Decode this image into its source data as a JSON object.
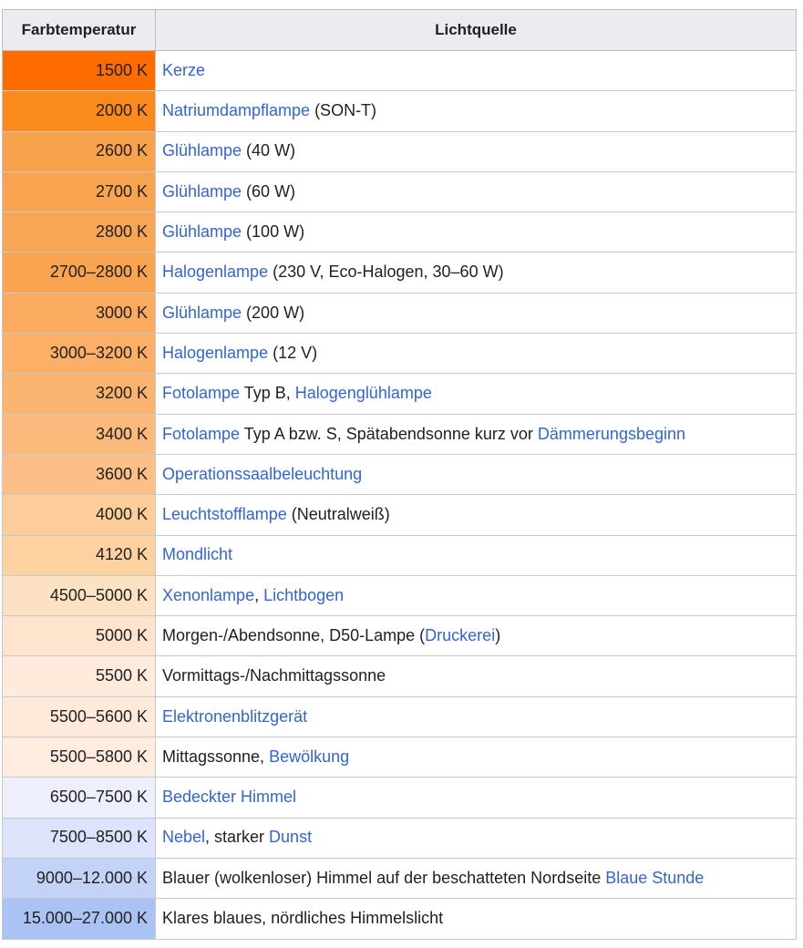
{
  "colors": {
    "link": "#3366cc",
    "body_text": "#202122",
    "header_bg": "#eaecf0",
    "outer_border": "#a2a9b1",
    "inner_border": "#c5c9ce"
  },
  "table": {
    "headers": [
      "Farbtemperatur",
      "Lichtquelle"
    ],
    "rows": [
      {
        "temp": "1500 K",
        "color": "#ff6c00",
        "parts": [
          {
            "text": "Kerze",
            "link": true
          }
        ]
      },
      {
        "temp": "2000 K",
        "color": "#fb8a1c",
        "parts": [
          {
            "text": "Natriumdampflampe",
            "link": true
          },
          {
            "text": " (SON-T)",
            "link": false
          }
        ]
      },
      {
        "temp": "2600 K",
        "color": "#f9a24c",
        "parts": [
          {
            "text": "Glühlampe",
            "link": true
          },
          {
            "text": " (40 W)",
            "link": false
          }
        ]
      },
      {
        "temp": "2700 K",
        "color": "#f9a451",
        "parts": [
          {
            "text": "Glühlampe",
            "link": true
          },
          {
            "text": " (60 W)",
            "link": false
          }
        ]
      },
      {
        "temp": "2800 K",
        "color": "#f9a654",
        "parts": [
          {
            "text": "Glühlampe",
            "link": true
          },
          {
            "text": " (100 W)",
            "link": false
          }
        ]
      },
      {
        "temp": "2700–2800 K",
        "color": "#f9a451",
        "parts": [
          {
            "text": "Halogenlampe",
            "link": true
          },
          {
            "text": " (230 V, Eco-Halogen, 30–60 W)",
            "link": false
          }
        ]
      },
      {
        "temp": "3000 K",
        "color": "#faab5f",
        "parts": [
          {
            "text": "Glühlampe",
            "link": true
          },
          {
            "text": " (200 W)",
            "link": false
          }
        ]
      },
      {
        "temp": "3000–3200 K",
        "color": "#fbaf67",
        "parts": [
          {
            "text": "Halogenlampe",
            "link": true
          },
          {
            "text": " (12 V)",
            "link": false
          }
        ]
      },
      {
        "temp": "3200 K",
        "color": "#fbb370",
        "parts": [
          {
            "text": "Fotolampe",
            "link": true
          },
          {
            "text": " Typ B, ",
            "link": false
          },
          {
            "text": "Halogenglühlampe",
            "link": true
          }
        ]
      },
      {
        "temp": "3400 K",
        "color": "#fbb97c",
        "parts": [
          {
            "text": "Fotolampe",
            "link": true
          },
          {
            "text": " Typ A bzw. S, Spätabendsonne kurz vor ",
            "link": false
          },
          {
            "text": "Dämmerungsbeginn",
            "link": true
          }
        ]
      },
      {
        "temp": "3600 K",
        "color": "#fcbf87",
        "parts": [
          {
            "text": "Operationssaalbeleuchtung",
            "link": true
          }
        ]
      },
      {
        "temp": "4000 K",
        "color": "#fdce9a",
        "parts": [
          {
            "text": "Leuchtstofflampe",
            "link": true
          },
          {
            "text": " (Neutralweiß)",
            "link": false
          }
        ]
      },
      {
        "temp": "4120 K",
        "color": "#fdd1a0",
        "parts": [
          {
            "text": "Mondlicht",
            "link": true
          }
        ]
      },
      {
        "temp": "4500–5000 K",
        "color": "#fde1c3",
        "parts": [
          {
            "text": "Xenonlampe",
            "link": true
          },
          {
            "text": ", ",
            "link": false
          },
          {
            "text": "Lichtbogen",
            "link": true
          }
        ]
      },
      {
        "temp": "5000 K",
        "color": "#fee4cc",
        "parts": [
          {
            "text": "Morgen-/Abendsonne, D50-Lampe (",
            "link": false
          },
          {
            "text": "Druckerei",
            "link": true
          },
          {
            "text": ")",
            "link": false
          }
        ]
      },
      {
        "temp": "5500 K",
        "color": "#feebdb",
        "parts": [
          {
            "text": "Vormittags-/Nachmittagssonne",
            "link": false
          }
        ]
      },
      {
        "temp": "5500–5600 K",
        "color": "#feeada",
        "parts": [
          {
            "text": "Elektronenblitzgerät",
            "link": true
          }
        ]
      },
      {
        "temp": "5500–5800 K",
        "color": "#feecdf",
        "parts": [
          {
            "text": "Mittagssonne, ",
            "link": false
          },
          {
            "text": "Bewölkung",
            "link": true
          }
        ]
      },
      {
        "temp": "6500–7500 K",
        "color": "#edf0fc",
        "parts": [
          {
            "text": "Bedeckter Himmel",
            "link": true
          }
        ]
      },
      {
        "temp": "7500–8500 K",
        "color": "#dce3fa",
        "parts": [
          {
            "text": "Nebel",
            "link": true
          },
          {
            "text": ", starker ",
            "link": false
          },
          {
            "text": "Dunst",
            "link": true
          }
        ]
      },
      {
        "temp": "9000–12.000 K",
        "color": "#c3d2f7",
        "parts": [
          {
            "text": "Blauer (wolkenloser) Himmel auf der beschatteten Nordseite ",
            "link": false
          },
          {
            "text": "Blaue Stunde",
            "link": true
          }
        ]
      },
      {
        "temp": "15.000–27.000 K",
        "color": "#abc2f5",
        "parts": [
          {
            "text": "Klares blaues, nördliches Himmelslicht",
            "link": false
          }
        ]
      }
    ]
  }
}
